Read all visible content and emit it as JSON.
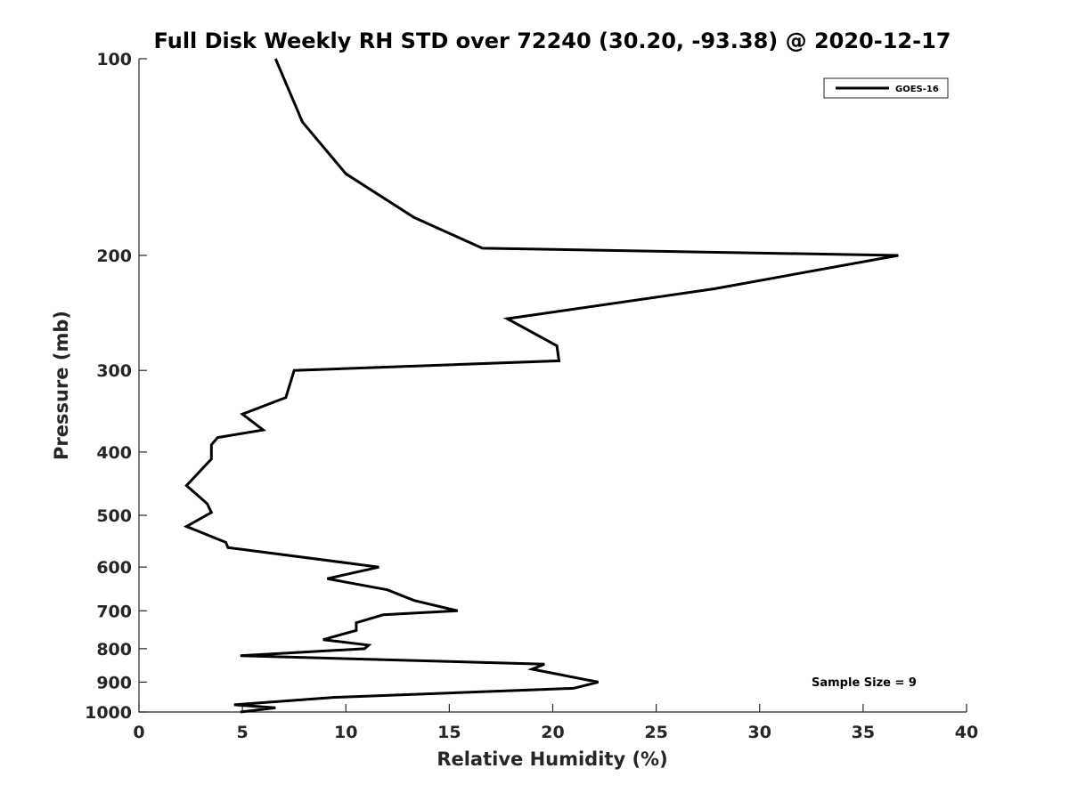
{
  "chart_data": {
    "type": "line",
    "title": "Full Disk Weekly RH STD over 72240 (30.20, -93.38) @ 2020-12-17",
    "xlabel": "Relative Humidity (%)",
    "ylabel": "Pressure (mb)",
    "xlim": [
      0,
      40
    ],
    "ylim": [
      100,
      1000
    ],
    "yscale": "log",
    "y_reversed": true,
    "grid": false,
    "xticks": [
      0,
      5,
      10,
      15,
      20,
      25,
      30,
      35,
      40
    ],
    "xtick_labels": [
      "0",
      "5",
      "10",
      "15",
      "20",
      "25",
      "30",
      "35",
      "40"
    ],
    "yticks": [
      100,
      200,
      300,
      400,
      500,
      600,
      700,
      800,
      900,
      1000
    ],
    "ytick_labels": [
      "100",
      "200",
      "300",
      "400",
      "500",
      "600",
      "700",
      "800",
      "900",
      "1000"
    ],
    "legend_position": "top-right",
    "series": [
      {
        "name": "GOES-16",
        "color": "#000000",
        "points": [
          [
            6.6,
            100
          ],
          [
            7.9,
            125
          ],
          [
            10.0,
            150
          ],
          [
            13.3,
            175
          ],
          [
            16.6,
            195
          ],
          [
            36.7,
            200
          ],
          [
            27.8,
            225
          ],
          [
            17.8,
            250
          ],
          [
            20.2,
            275
          ],
          [
            20.3,
            290
          ],
          [
            7.5,
            300
          ],
          [
            7.1,
            330
          ],
          [
            5.0,
            350
          ],
          [
            6.0,
            370
          ],
          [
            3.8,
            380
          ],
          [
            3.5,
            390
          ],
          [
            3.5,
            410
          ],
          [
            2.3,
            450
          ],
          [
            3.3,
            480
          ],
          [
            3.5,
            495
          ],
          [
            2.3,
            520
          ],
          [
            4.2,
            550
          ],
          [
            4.3,
            560
          ],
          [
            11.6,
            600
          ],
          [
            9.1,
            625
          ],
          [
            12.0,
            650
          ],
          [
            13.3,
            675
          ],
          [
            15.4,
            700
          ],
          [
            11.8,
            710
          ],
          [
            10.5,
            730
          ],
          [
            10.5,
            750
          ],
          [
            8.9,
            775
          ],
          [
            11.1,
            790
          ],
          [
            10.9,
            800
          ],
          [
            4.9,
            820
          ],
          [
            19.6,
            845
          ],
          [
            19.0,
            860
          ],
          [
            22.2,
            900
          ],
          [
            21.0,
            920
          ],
          [
            19.0,
            925
          ],
          [
            9.4,
            950
          ],
          [
            4.6,
            975
          ],
          [
            6.6,
            985
          ],
          [
            4.9,
            1000
          ]
        ]
      }
    ],
    "annotation": "Sample Size = 9"
  }
}
